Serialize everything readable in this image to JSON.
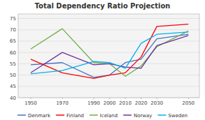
{
  "chart_data": {
    "type": "line",
    "title": "Total Dependency Ratio Projection",
    "x": [
      1950,
      1970,
      1990,
      2000,
      2010,
      2020,
      2030,
      2050
    ],
    "series": [
      {
        "name": "Denmark",
        "color": "#4472C4",
        "values": [
          54.5,
          55.5,
          49.0,
          50.0,
          55.5,
          57.0,
          66.0,
          68.0
        ]
      },
      {
        "name": "Finland",
        "color": "#FF0000",
        "values": [
          57.0,
          51.0,
          48.5,
          50.0,
          51.0,
          58.0,
          71.5,
          72.5
        ]
      },
      {
        "name": "Iceland",
        "color": "#70AD47",
        "values": [
          61.5,
          70.5,
          55.5,
          55.0,
          49.5,
          54.0,
          62.5,
          69.5
        ]
      },
      {
        "name": "Norway",
        "color": "#7030A0",
        "values": [
          51.0,
          60.0,
          54.5,
          55.0,
          53.5,
          53.0,
          63.0,
          67.5
        ]
      },
      {
        "name": "Sweden",
        "color": "#00B0F0",
        "values": [
          50.5,
          52.0,
          56.0,
          55.5,
          53.0,
          64.0,
          68.0,
          69.0
        ]
      }
    ],
    "xlim": [
      1942,
      2057
    ],
    "xticks": [
      1950,
      1970,
      1990,
      2000,
      2010,
      2020,
      2030,
      2050
    ],
    "ylim": [
      40,
      77
    ],
    "yticks": [
      40,
      45,
      50,
      55,
      60,
      65,
      70,
      75
    ],
    "grid": true,
    "legend": "bottom"
  }
}
